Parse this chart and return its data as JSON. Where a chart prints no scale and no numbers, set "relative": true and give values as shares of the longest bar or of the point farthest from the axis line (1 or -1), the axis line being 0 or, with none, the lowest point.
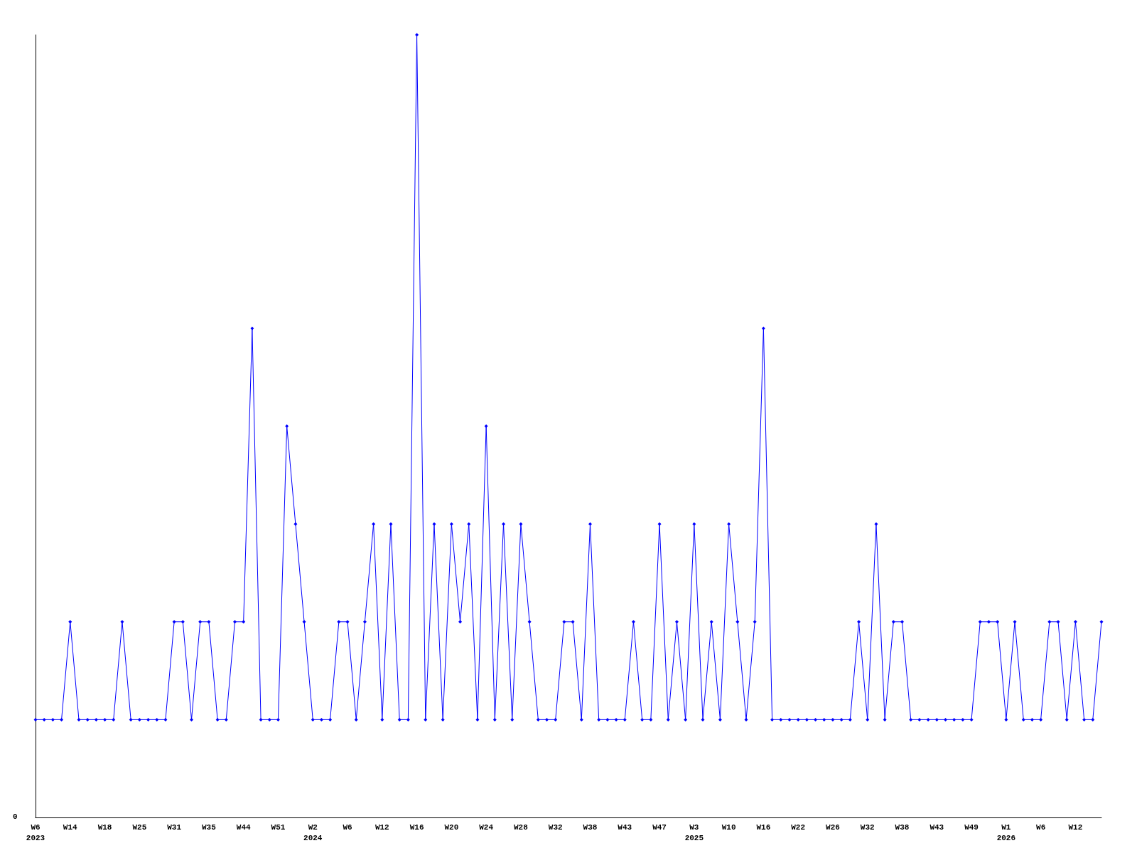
{
  "chart_data": {
    "type": "line",
    "relative": true,
    "marker": "diamond",
    "line_style": "solid",
    "annotations": [
      "0"
    ],
    "categories": [
      "W6\n2023",
      null,
      null,
      null,
      "W14",
      null,
      null,
      null,
      "W18",
      null,
      null,
      null,
      "W25",
      null,
      null,
      null,
      "W31",
      null,
      null,
      null,
      "W35",
      null,
      null,
      null,
      "W44",
      null,
      null,
      null,
      "W51",
      null,
      null,
      null,
      "W2\n2024",
      null,
      null,
      null,
      "W6",
      null,
      null,
      null,
      "W12",
      null,
      null,
      null,
      "W16",
      null,
      null,
      null,
      "W20",
      null,
      null,
      null,
      "W24",
      null,
      null,
      null,
      "W28",
      null,
      null,
      null,
      "W32",
      null,
      null,
      null,
      "W38",
      null,
      null,
      null,
      "W43",
      null,
      null,
      null,
      "W47",
      null,
      null,
      null,
      "W3\n2025",
      null,
      null,
      null,
      "W10",
      null,
      null,
      null,
      "W16",
      null,
      null,
      null,
      "W22",
      null,
      null,
      null,
      "W26",
      null,
      null,
      null,
      "W32",
      null,
      null,
      null,
      "W38",
      null,
      null,
      null,
      "W43",
      null,
      null,
      null,
      "W49",
      null,
      null,
      null,
      "W1\n2026",
      null,
      null,
      null,
      "W6",
      null,
      null,
      null,
      "W12",
      null,
      null,
      null
    ],
    "series": [
      {
        "color": "#0000ff",
        "values": [
          0.125,
          0.125,
          0.125,
          0.125,
          0.25,
          0.125,
          0.125,
          0.125,
          0.125,
          0.125,
          0.25,
          0.125,
          0.125,
          0.125,
          0.125,
          0.125,
          0.25,
          0.25,
          0.125,
          0.25,
          0.25,
          0.125,
          0.125,
          0.25,
          0.25,
          0.625,
          0.125,
          0.125,
          0.125,
          0.5,
          0.375,
          0.25,
          0.125,
          0.125,
          0.125,
          0.25,
          0.25,
          0.125,
          0.25,
          0.375,
          0.125,
          0.375,
          0.125,
          0.125,
          1,
          0.125,
          0.375,
          0.125,
          0.375,
          0.25,
          0.375,
          0.125,
          0.5,
          0.125,
          0.375,
          0.125,
          0.375,
          0.25,
          0.125,
          0.125,
          0.125,
          0.25,
          0.25,
          0.125,
          0.375,
          0.125,
          0.125,
          0.125,
          0.125,
          0.25,
          0.125,
          0.125,
          0.375,
          0.125,
          0.25,
          0.125,
          0.375,
          0.125,
          0.25,
          0.125,
          0.375,
          0.25,
          0.125,
          0.25,
          0.625,
          0.125,
          0.125,
          0.125,
          0.125,
          0.125,
          0.125,
          0.125,
          0.125,
          0.125,
          0.125,
          0.25,
          0.125,
          0.375,
          0.125,
          0.25,
          0.25,
          0.125,
          0.125,
          0.125,
          0.125,
          0.125,
          0.125,
          0.125,
          0.125,
          0.25,
          0.25,
          0.25,
          0.125,
          0.25,
          0.125,
          0.125,
          0.125,
          0.25,
          0.25,
          0.125,
          0.25,
          0.125,
          0.125,
          0.25
        ]
      }
    ]
  }
}
